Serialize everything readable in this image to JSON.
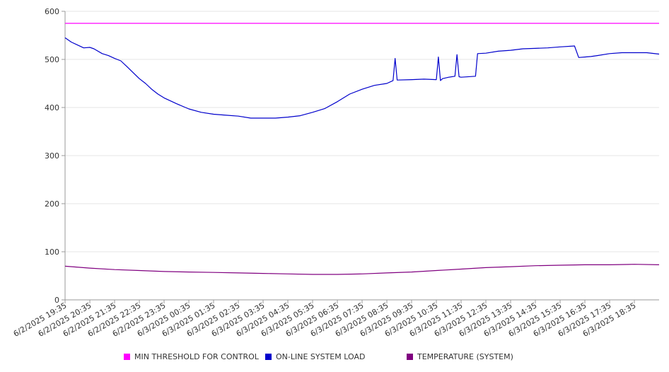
{
  "chart_data": {
    "type": "line",
    "title": "",
    "xlabel": "",
    "ylabel": "",
    "ylim": [
      0,
      600
    ],
    "yticks": [
      "0",
      "100",
      "200",
      "300",
      "400",
      "500",
      "600"
    ],
    "grid": true,
    "legend_position": "bottom",
    "x_tick_labels": [
      "6/2/2025 19:35",
      "6/2/2025 20:35",
      "6/2/2025 21:35",
      "6/2/2025 22:35",
      "6/2/2025 23:35",
      "6/3/2025 00:35",
      "6/3/2025 01:35",
      "6/3/2025 02:35",
      "6/3/2025 03:35",
      "6/3/2025 04:35",
      "6/3/2025 05:35",
      "6/3/2025 06:35",
      "6/3/2025 07:35",
      "6/3/2025 08:35",
      "6/3/2025 09:35",
      "6/3/2025 10:35",
      "6/3/2025 11:35",
      "6/3/2025 12:35",
      "6/3/2025 13:35",
      "6/3/2025 14:35",
      "6/3/2025 15:35",
      "6/3/2025 16:35",
      "6/3/2025 17:35",
      "6/3/2025 18:35"
    ],
    "x_range": [
      "6/2/2025 19:35",
      "6/3/2025 19:35"
    ],
    "series": [
      {
        "name": "MIN THRESHOLD FOR CONTROL",
        "color": "#ff00ff",
        "x": [
          "6/2/2025 19:35",
          "6/3/2025 19:35"
        ],
        "values": [
          575,
          575
        ]
      },
      {
        "name": "ON-LINE SYSTEM LOAD",
        "color": "#0000cc",
        "x": [
          "6/2/2025 19:35",
          "6/2/2025 19:50",
          "6/2/2025 20:05",
          "6/2/2025 20:20",
          "6/2/2025 20:35",
          "6/2/2025 20:45",
          "6/2/2025 21:05",
          "6/2/2025 21:20",
          "6/2/2025 21:35",
          "6/2/2025 21:50",
          "6/2/2025 22:05",
          "6/2/2025 22:35",
          "6/2/2025 22:50",
          "6/2/2025 23:05",
          "6/2/2025 23:20",
          "6/2/2025 23:35",
          "6/3/2025 00:05",
          "6/3/2025 00:35",
          "6/3/2025 01:05",
          "6/3/2025 01:35",
          "6/3/2025 02:05",
          "6/3/2025 02:35",
          "6/3/2025 03:05",
          "6/3/2025 03:35",
          "6/3/2025 04:05",
          "6/3/2025 04:35",
          "6/3/2025 05:05",
          "6/3/2025 05:35",
          "6/3/2025 06:05",
          "6/3/2025 06:35",
          "6/3/2025 07:05",
          "6/3/2025 07:35",
          "6/3/2025 08:05",
          "6/3/2025 08:35",
          "6/3/2025 08:50",
          "6/3/2025 08:55",
          "6/3/2025 09:00",
          "6/3/2025 09:35",
          "6/3/2025 10:05",
          "6/3/2025 10:35",
          "6/3/2025 10:40",
          "6/3/2025 10:45",
          "6/3/2025 10:50",
          "6/3/2025 11:05",
          "6/3/2025 11:20",
          "6/3/2025 11:25",
          "6/3/2025 11:30",
          "6/3/2025 11:35",
          "6/3/2025 12:10",
          "6/3/2025 12:15",
          "6/3/2025 12:35",
          "6/3/2025 13:05",
          "6/3/2025 13:35",
          "6/3/2025 14:05",
          "6/3/2025 14:35",
          "6/3/2025 15:05",
          "6/3/2025 15:35",
          "6/3/2025 16:10",
          "6/3/2025 16:20",
          "6/3/2025 16:35",
          "6/3/2025 16:50",
          "6/3/2025 17:05",
          "6/3/2025 17:35",
          "6/3/2025 18:05",
          "6/3/2025 18:35",
          "6/3/2025 19:05",
          "6/3/2025 19:35"
        ],
        "values": [
          545,
          536,
          530,
          524,
          525,
          522,
          512,
          508,
          502,
          497,
          485,
          460,
          450,
          438,
          428,
          420,
          408,
          397,
          390,
          386,
          384,
          382,
          378,
          378,
          378,
          380,
          383,
          390,
          398,
          412,
          428,
          438,
          446,
          450,
          456,
          502,
          457,
          458,
          459,
          458,
          505,
          456,
          460,
          463,
          465,
          510,
          464,
          463,
          465,
          512,
          513,
          517,
          519,
          522,
          523,
          524,
          526,
          528,
          504,
          505,
          506,
          508,
          512,
          514,
          514,
          514,
          511
        ]
      },
      {
        "name": "TEMPERATURE (SYSTEM)",
        "color": "#800080",
        "x": [
          "6/2/2025 19:35",
          "6/2/2025 20:35",
          "6/2/2025 21:35",
          "6/2/2025 22:35",
          "6/2/2025 23:35",
          "6/3/2025 00:35",
          "6/3/2025 01:35",
          "6/3/2025 02:35",
          "6/3/2025 03:35",
          "6/3/2025 04:35",
          "6/3/2025 05:35",
          "6/3/2025 06:35",
          "6/3/2025 07:35",
          "6/3/2025 08:35",
          "6/3/2025 09:35",
          "6/3/2025 10:35",
          "6/3/2025 11:35",
          "6/3/2025 12:35",
          "6/3/2025 13:35",
          "6/3/2025 14:35",
          "6/3/2025 15:35",
          "6/3/2025 16:35",
          "6/3/2025 17:35",
          "6/3/2025 18:35",
          "6/3/2025 19:35"
        ],
        "values": [
          70,
          66,
          63,
          61,
          59,
          58,
          57,
          56,
          55,
          54,
          53,
          53,
          54,
          56,
          58,
          61,
          64,
          67,
          69,
          71,
          72,
          73,
          73,
          74,
          73
        ]
      }
    ]
  }
}
